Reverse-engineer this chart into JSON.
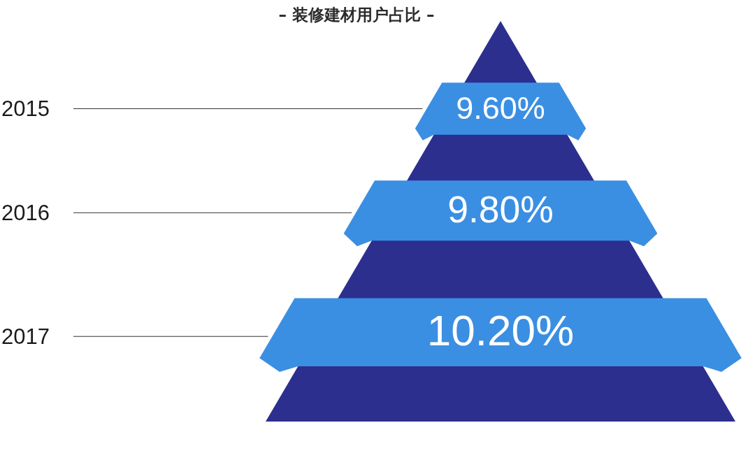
{
  "chart_data": {
    "type": "other",
    "title": "– 装修建材用户占比 –",
    "categories": [
      "2015",
      "2016",
      "2017"
    ],
    "values": [
      9.6,
      9.8,
      10.2
    ],
    "value_labels": [
      "9.60%",
      "9.80%",
      "10.20%"
    ],
    "color": "#3b8fe2"
  }
}
